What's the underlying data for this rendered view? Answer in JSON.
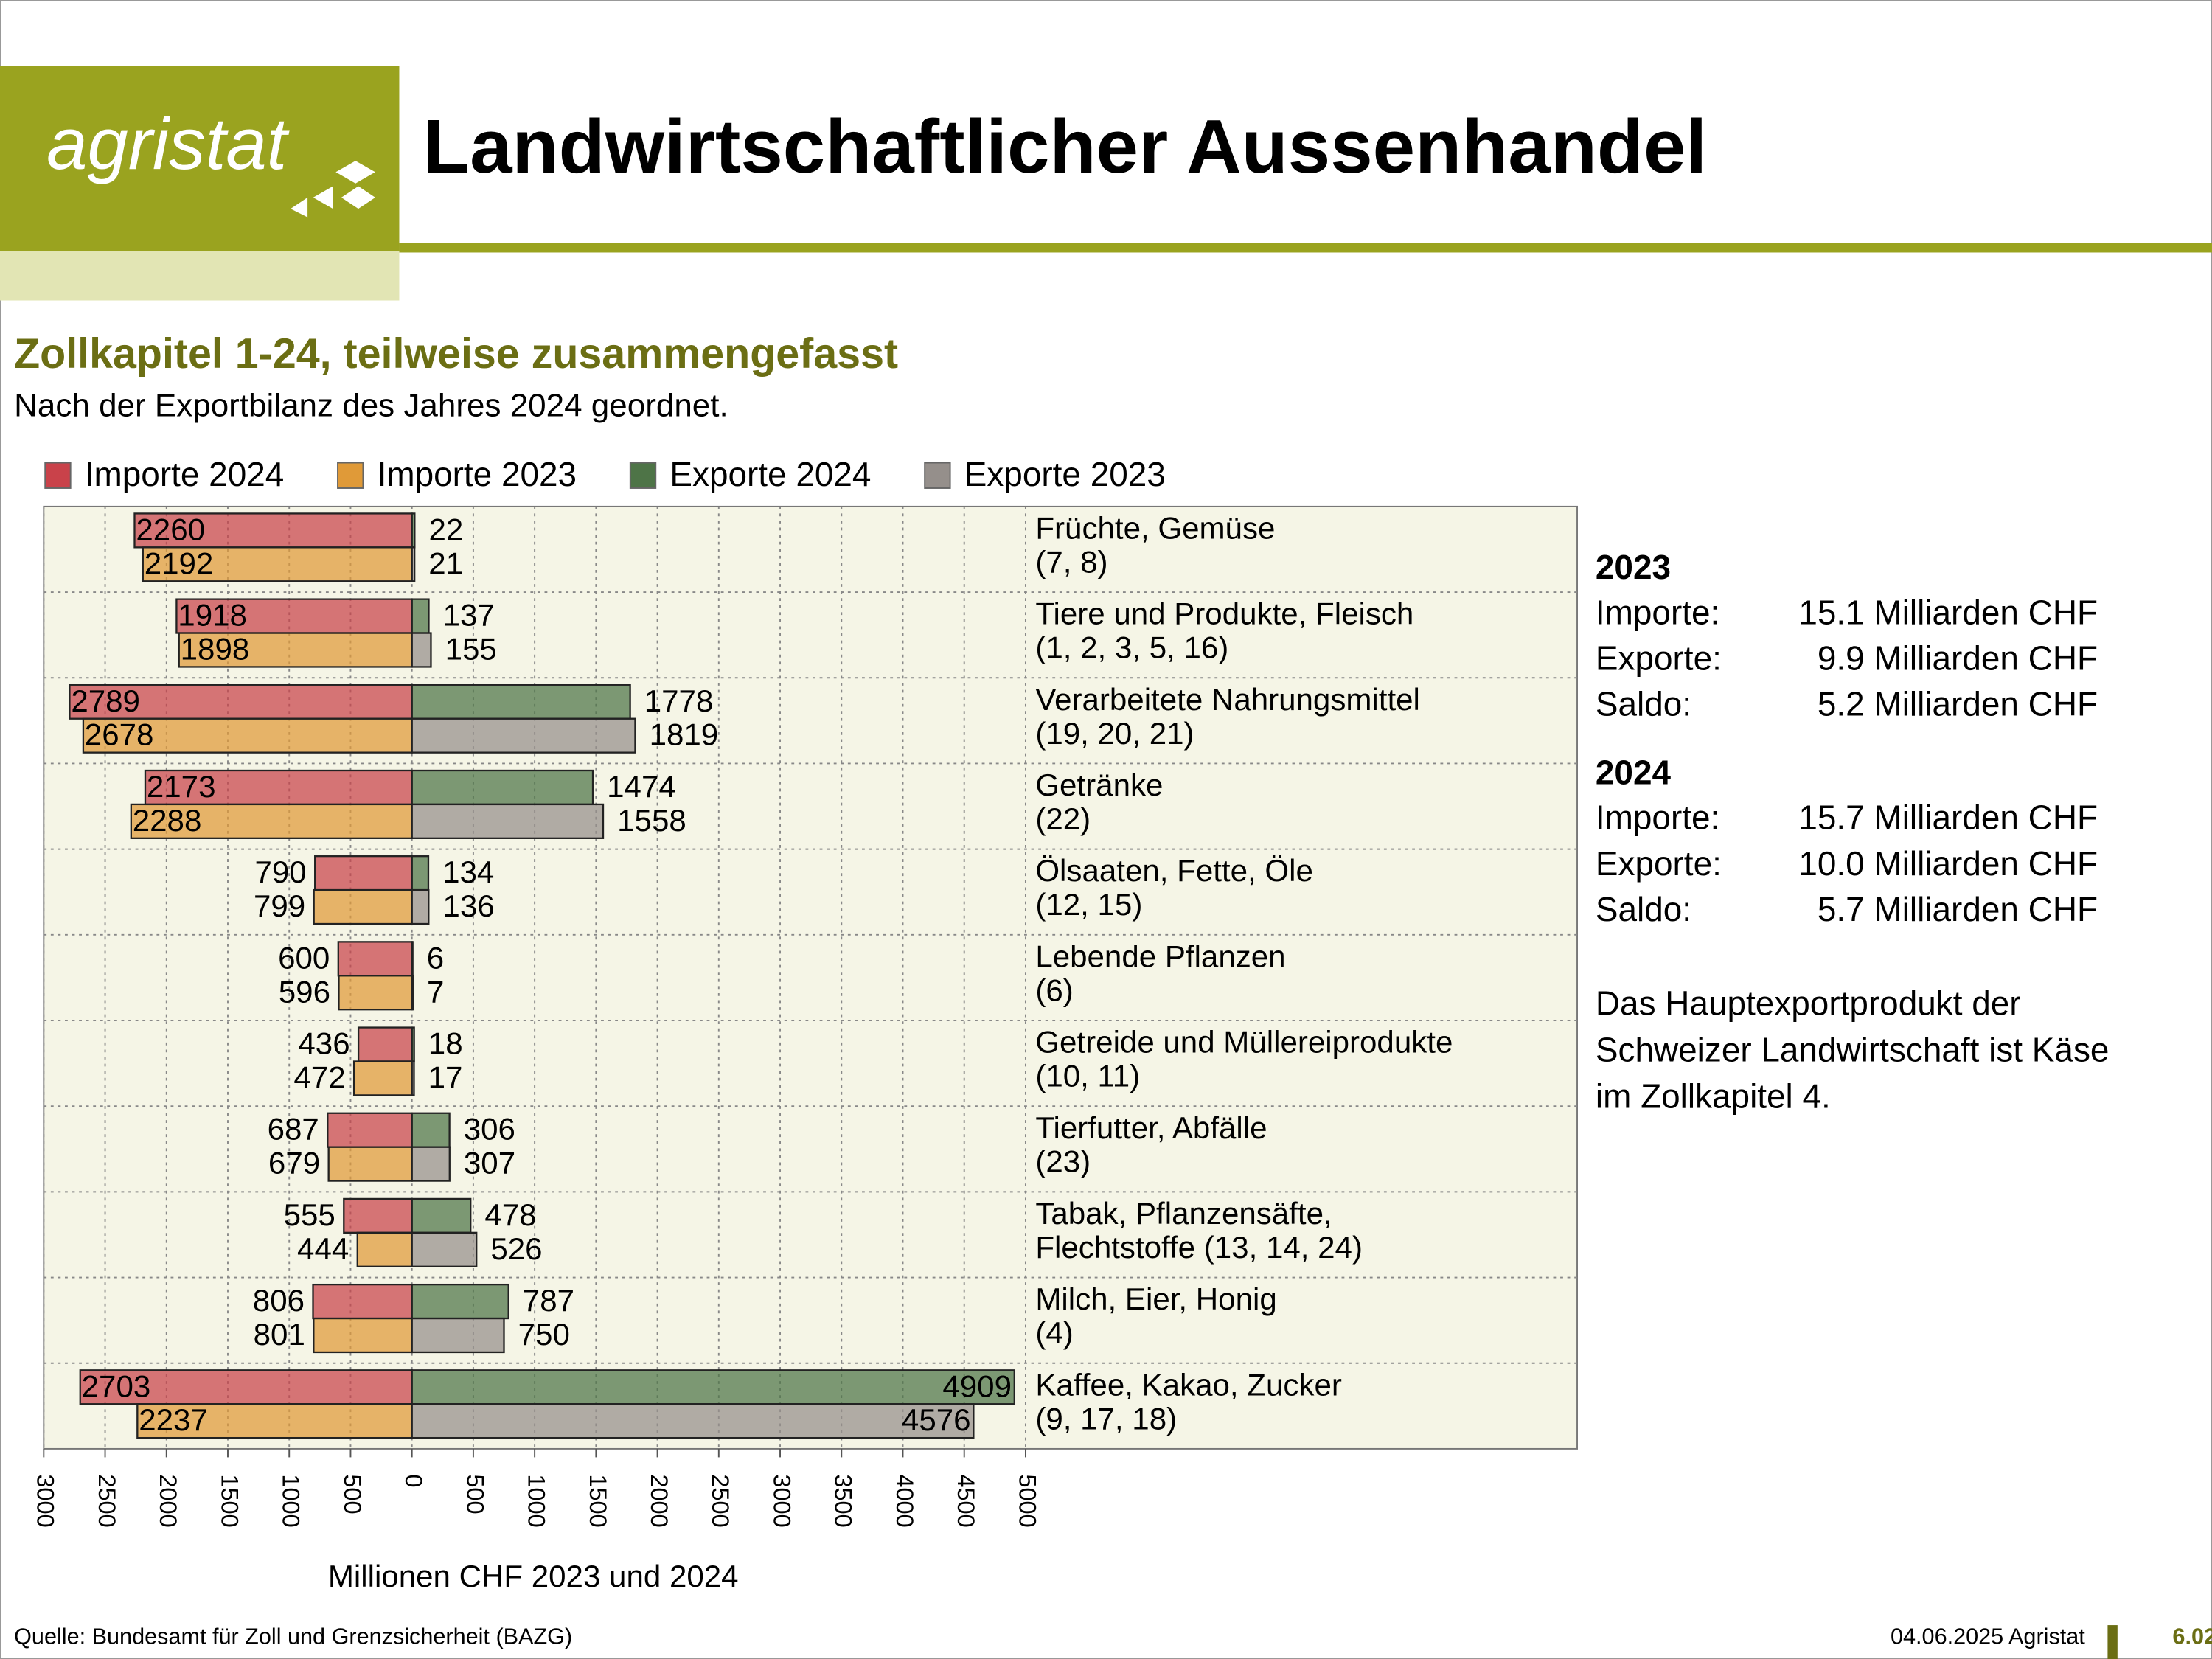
{
  "header": {
    "logo": "agristat",
    "title": "Landwirtschaftlicher Aussenhandel"
  },
  "chart_data": {
    "type": "bar",
    "orientation": "horizontal",
    "title": "Zollkapitel 1-24, teilweise zusammengefasst",
    "subtitle": "Nach der Exportbilanz des Jahres 2024 geordnet.",
    "x_label": "Millionen CHF 2023 und 2024",
    "categories": [
      [
        "Früchte, Gemüse",
        "(7, 8)"
      ],
      [
        "Tiere und Produkte, Fleisch",
        "(1, 2, 3, 5, 16)"
      ],
      [
        "Verarbeitete Nahrungsmittel",
        "(19, 20, 21)"
      ],
      [
        "Getränke",
        "(22)"
      ],
      [
        "Ölsaaten, Fette, Öle",
        "(12, 15)"
      ],
      [
        "Lebende Pflanzen",
        "(6)"
      ],
      [
        "Getreide und Müllereiprodukte",
        "(10, 11)"
      ],
      [
        "Tierfutter, Abfälle",
        "(23)"
      ],
      [
        "Tabak, Pflanzensäfte,",
        "Flechtstoffe (13, 14, 24)"
      ],
      [
        "Milch, Eier, Honig",
        "(4)"
      ],
      [
        "Kaffee, Kakao, Zucker",
        "(9, 17, 18)"
      ]
    ],
    "series": [
      {
        "name": "Importe 2024",
        "color": "#c9424a",
        "values": [
          -2260,
          -1918,
          -2789,
          -2173,
          -790,
          -600,
          -436,
          -687,
          -555,
          -806,
          -2703
        ],
        "value_labels": [
          "2260",
          "1918",
          "2789",
          "2173",
          "790",
          "600",
          "436",
          "687",
          "555",
          "806",
          "2703"
        ]
      },
      {
        "name": "Importe 2023",
        "color": "#e09a38",
        "values": [
          -2192,
          -1898,
          -2678,
          -2288,
          -799,
          -596,
          -472,
          -679,
          -444,
          -801,
          -2237
        ],
        "value_labels": [
          "2192",
          "1898",
          "2678",
          "2288",
          "799",
          "596",
          "472",
          "679",
          "444",
          "801",
          "2237"
        ]
      },
      {
        "name": "Exporte 2024",
        "color": "#4e7447",
        "values": [
          22,
          137,
          1778,
          1474,
          134,
          6,
          18,
          306,
          478,
          787,
          4909
        ]
      },
      {
        "name": "Exporte 2023",
        "color": "#958f8b",
        "values": [
          21,
          155,
          1819,
          1558,
          136,
          7,
          17,
          307,
          526,
          750,
          4576
        ]
      }
    ],
    "xlim": [
      -3000,
      5000
    ],
    "xticks": [
      {
        "value": -3000,
        "label": "3000"
      },
      {
        "value": -2500,
        "label": "2500"
      },
      {
        "value": -2000,
        "label": "2000"
      },
      {
        "value": -1500,
        "label": "1500"
      },
      {
        "value": -1000,
        "label": "1000"
      },
      {
        "value": -500,
        "label": "500"
      },
      0,
      500,
      1000,
      1500,
      2000,
      2500,
      3000,
      3500,
      4000,
      4500,
      5000
    ],
    "grid": true,
    "legend": "top"
  },
  "summary": [
    {
      "year": "2023",
      "rows": [
        [
          "Importe:",
          "15.1 Milliarden CHF"
        ],
        [
          "Exporte:",
          "9.9 Milliarden CHF"
        ],
        [
          "Saldo:",
          "5.2 Milliarden CHF"
        ]
      ]
    },
    {
      "year": "2024",
      "rows": [
        [
          "Importe:",
          "15.7 Milliarden CHF"
        ],
        [
          "Exporte:",
          "10.0 Milliarden CHF"
        ],
        [
          "Saldo:",
          "5.7 Milliarden CHF"
        ]
      ]
    }
  ],
  "note": [
    "Das Hauptexportprodukt der",
    "Schweizer Landwirtschaft ist Käse",
    "im Zollkapitel 4."
  ],
  "footer": {
    "source": "Quelle: Bundesamt für Zoll und Grenzsicherheit (BAZG)",
    "date": "04.06.2025 Agristat",
    "page": "6.02"
  }
}
